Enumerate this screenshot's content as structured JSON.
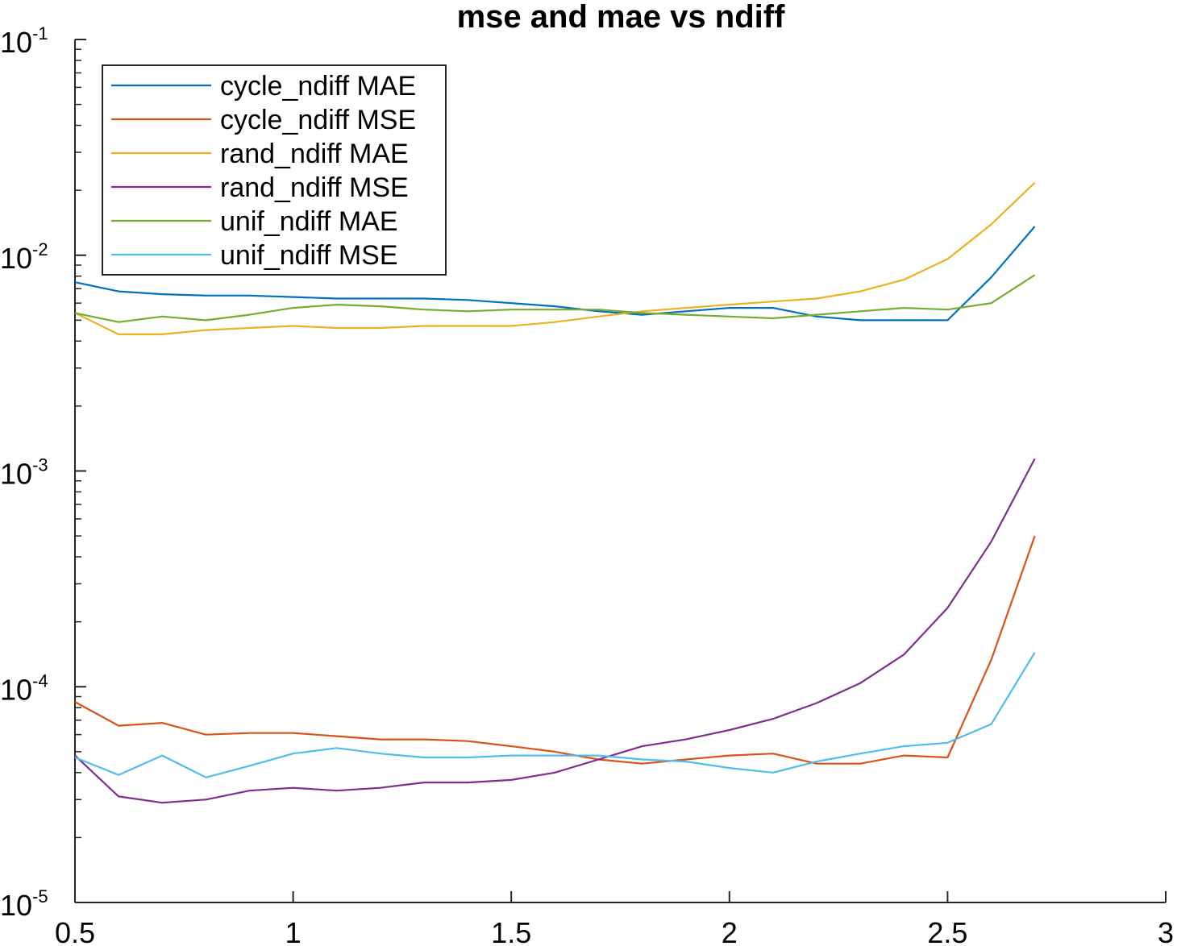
{
  "chart_data": {
    "type": "line",
    "title": "mse and mae vs ndiff",
    "xlabel": "",
    "ylabel": "",
    "xlim": [
      0.5,
      3
    ],
    "ylim": [
      1e-05,
      0.1
    ],
    "yscale": "log",
    "grid": false,
    "legend_position": "top-left",
    "x_ticks": [
      {
        "value": 0.5,
        "label": "0.5"
      },
      {
        "value": 1,
        "label": "1"
      },
      {
        "value": 1.5,
        "label": "1.5"
      },
      {
        "value": 2,
        "label": "2"
      },
      {
        "value": 2.5,
        "label": "2.5"
      },
      {
        "value": 3,
        "label": "3"
      }
    ],
    "y_ticks": [
      {
        "value": 0.1,
        "base": "10",
        "exp": "-1"
      },
      {
        "value": 0.01,
        "base": "10",
        "exp": "-2"
      },
      {
        "value": 0.001,
        "base": "10",
        "exp": "-3"
      },
      {
        "value": 0.0001,
        "base": "10",
        "exp": "-4"
      },
      {
        "value": 1e-05,
        "base": "10",
        "exp": "-5"
      }
    ],
    "x": [
      0.5,
      0.6,
      0.7,
      0.8,
      0.9,
      1.0,
      1.1,
      1.2,
      1.3,
      1.4,
      1.5,
      1.6,
      1.7,
      1.8,
      1.9,
      2.0,
      2.1,
      2.2,
      2.3,
      2.4,
      2.5,
      2.6,
      2.7
    ],
    "series": [
      {
        "name": "cycle_ndiff MAE",
        "color": "#0072BD",
        "values": [
          0.0075,
          0.0068,
          0.0066,
          0.0065,
          0.0065,
          0.0064,
          0.0063,
          0.0063,
          0.0063,
          0.0062,
          0.006,
          0.0058,
          0.0055,
          0.0053,
          0.0055,
          0.0057,
          0.0057,
          0.0052,
          0.005,
          0.005,
          0.005,
          0.0079,
          0.0136
        ]
      },
      {
        "name": "cycle_ndiff MSE",
        "color": "#D95319",
        "values": [
          8.5e-05,
          6.6e-05,
          6.8e-05,
          6e-05,
          6.1e-05,
          6.1e-05,
          5.9e-05,
          5.7e-05,
          5.7e-05,
          5.6e-05,
          5.3e-05,
          5e-05,
          4.6e-05,
          4.4e-05,
          4.6e-05,
          4.8e-05,
          4.9e-05,
          4.4e-05,
          4.4e-05,
          4.8e-05,
          4.7e-05,
          0.000133,
          0.0005
        ]
      },
      {
        "name": "rand_ndiff MAE",
        "color": "#EDB120",
        "values": [
          0.0054,
          0.0043,
          0.0043,
          0.0045,
          0.0046,
          0.0047,
          0.0046,
          0.0046,
          0.0047,
          0.0047,
          0.0047,
          0.0049,
          0.0052,
          0.0055,
          0.0057,
          0.0059,
          0.0061,
          0.0063,
          0.0068,
          0.0077,
          0.0096,
          0.0139,
          0.0217
        ]
      },
      {
        "name": "rand_ndiff MSE",
        "color": "#7E2F8E",
        "values": [
          4.8e-05,
          3.1e-05,
          2.9e-05,
          3e-05,
          3.3e-05,
          3.4e-05,
          3.3e-05,
          3.4e-05,
          3.6e-05,
          3.6e-05,
          3.7e-05,
          4e-05,
          4.6e-05,
          5.3e-05,
          5.7e-05,
          6.3e-05,
          7.1e-05,
          8.4e-05,
          0.000104,
          0.000141,
          0.000232,
          0.00047,
          0.00114
        ]
      },
      {
        "name": "unif_ndiff MAE",
        "color": "#77AC30",
        "values": [
          0.0054,
          0.0049,
          0.0052,
          0.005,
          0.0053,
          0.0057,
          0.0059,
          0.0058,
          0.0056,
          0.0055,
          0.0056,
          0.0056,
          0.0056,
          0.0054,
          0.0053,
          0.0052,
          0.0051,
          0.0053,
          0.0055,
          0.0057,
          0.0056,
          0.006,
          0.0081
        ]
      },
      {
        "name": "unif_ndiff MSE",
        "color": "#4DBEEE",
        "values": [
          4.7e-05,
          3.9e-05,
          4.8e-05,
          3.8e-05,
          4.3e-05,
          4.9e-05,
          5.2e-05,
          4.9e-05,
          4.7e-05,
          4.7e-05,
          4.8e-05,
          4.8e-05,
          4.8e-05,
          4.6e-05,
          4.5e-05,
          4.2e-05,
          4e-05,
          4.5e-05,
          4.9e-05,
          5.3e-05,
          5.5e-05,
          6.7e-05,
          0.000144
        ]
      }
    ]
  }
}
